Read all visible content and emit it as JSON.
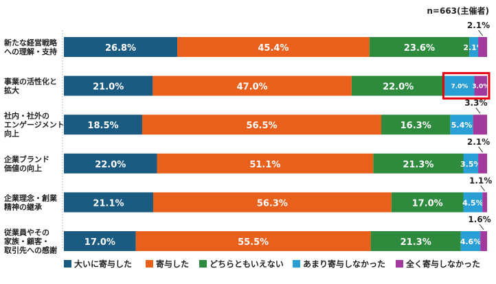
{
  "chart_data": {
    "type": "bar",
    "orientation": "horizontal",
    "stacked": true,
    "sample_note": "n=663(主催者)",
    "categories": [
      [
        "新たな経営戦略",
        "への理解・支持"
      ],
      [
        "事業の活性化と",
        "拡大"
      ],
      [
        "社内・社外の",
        "エンゲージメント",
        "向上"
      ],
      [
        "企業ブランド",
        "価値の向上"
      ],
      [
        "企業理念・創業",
        "精神の継承"
      ],
      [
        "従業員やその",
        "家族・顧客・",
        "取引先への感謝"
      ]
    ],
    "series": [
      {
        "name": "大いに寄与した",
        "color": "#1b5b82",
        "values": [
          26.8,
          21.0,
          18.5,
          22.0,
          21.1,
          17.0
        ]
      },
      {
        "name": "寄与した",
        "color": "#e8601c",
        "values": [
          45.4,
          47.0,
          56.5,
          51.1,
          56.3,
          55.5
        ]
      },
      {
        "name": "どちらともいえない",
        "color": "#2e8b3e",
        "values": [
          23.6,
          22.0,
          16.3,
          21.3,
          17.0,
          21.3
        ]
      },
      {
        "name": "あまり寄与しなかった",
        "color": "#2a9fd6",
        "values": [
          2.1,
          7.0,
          5.4,
          3.5,
          4.5,
          4.6
        ]
      },
      {
        "name": "全く寄与しなかった",
        "color": "#a23a9e",
        "values": [
          2.1,
          3.0,
          3.3,
          2.1,
          1.1,
          1.6
        ]
      }
    ],
    "xlim": [
      0,
      100
    ],
    "value_suffix": "%",
    "highlight": {
      "category_index": 1,
      "color": "#e60012"
    },
    "legend_position": "bottom"
  }
}
